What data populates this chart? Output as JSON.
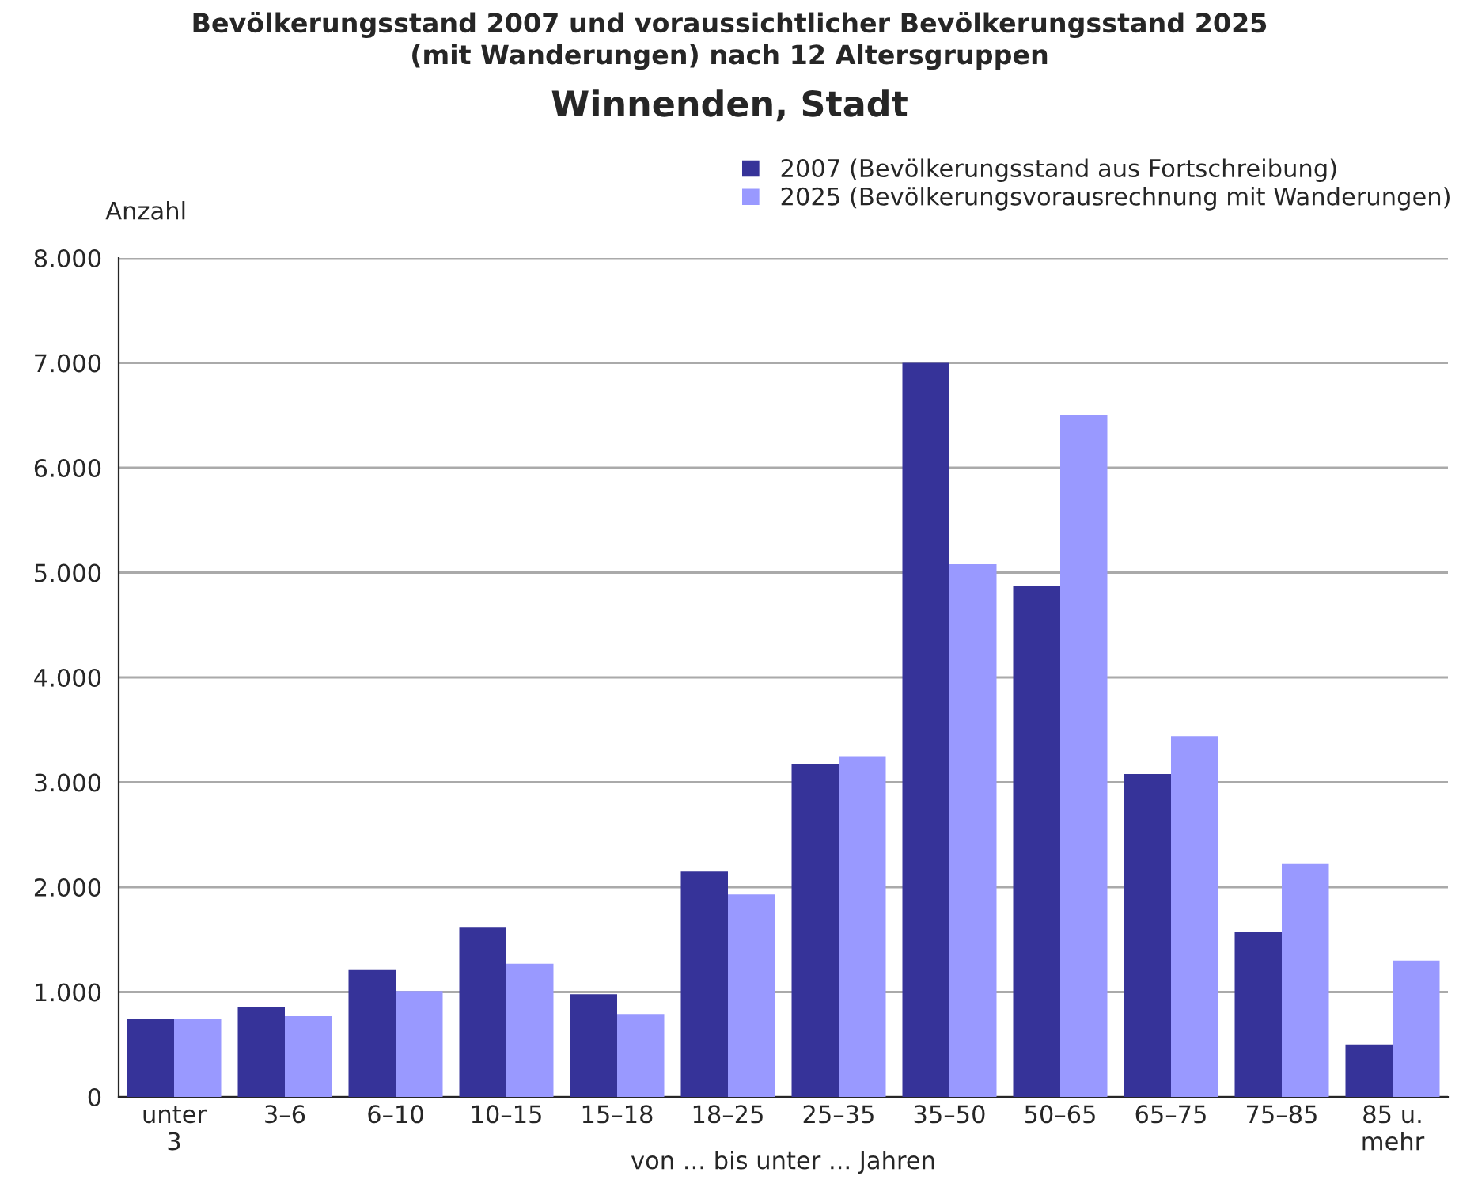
{
  "chart_data": {
    "type": "bar",
    "title": "Bevölkerungsstand 2007 und voraussichtlicher Bevölkerungsstand 2025\n(mit Wanderungen) nach 12 Altersgruppen",
    "subtitle": "Winnenden, Stadt",
    "xlabel": "von ... bis unter ... Jahren",
    "ylabel": "Anzahl",
    "categories": [
      "unter\n3",
      "3–6",
      "6–10",
      "10–15",
      "15–18",
      "18–25",
      "25–35",
      "35–50",
      "50–65",
      "65–75",
      "75–85",
      "85 u.\nmehr"
    ],
    "series": [
      {
        "name": "2007 (Bevölkerungsstand aus Fortschreibung)",
        "color": "#363399",
        "values": [
          740,
          860,
          1210,
          1620,
          980,
          2150,
          3170,
          7000,
          4870,
          3080,
          1570,
          500
        ]
      },
      {
        "name": "2025 (Bevölkerungsvorausrechnung mit Wanderungen)",
        "color": "#9999ff",
        "values": [
          740,
          770,
          1010,
          1270,
          790,
          1930,
          3250,
          5080,
          6500,
          3440,
          2220,
          1300
        ]
      }
    ],
    "ylim": [
      0,
      8000
    ],
    "yticks": [
      0,
      {
        "value": 1000,
        "label": "1.000"
      },
      {
        "value": 2000,
        "label": "2.000"
      },
      {
        "value": 3000,
        "label": "3.000"
      },
      {
        "value": 4000,
        "label": "4.000"
      },
      {
        "value": 5000,
        "label": "5.000"
      },
      {
        "value": 6000,
        "label": "6.000"
      },
      {
        "value": 7000,
        "label": "7.000"
      },
      {
        "value": 8000,
        "label": "8.000"
      }
    ],
    "grid": "y",
    "legend": "top right"
  }
}
